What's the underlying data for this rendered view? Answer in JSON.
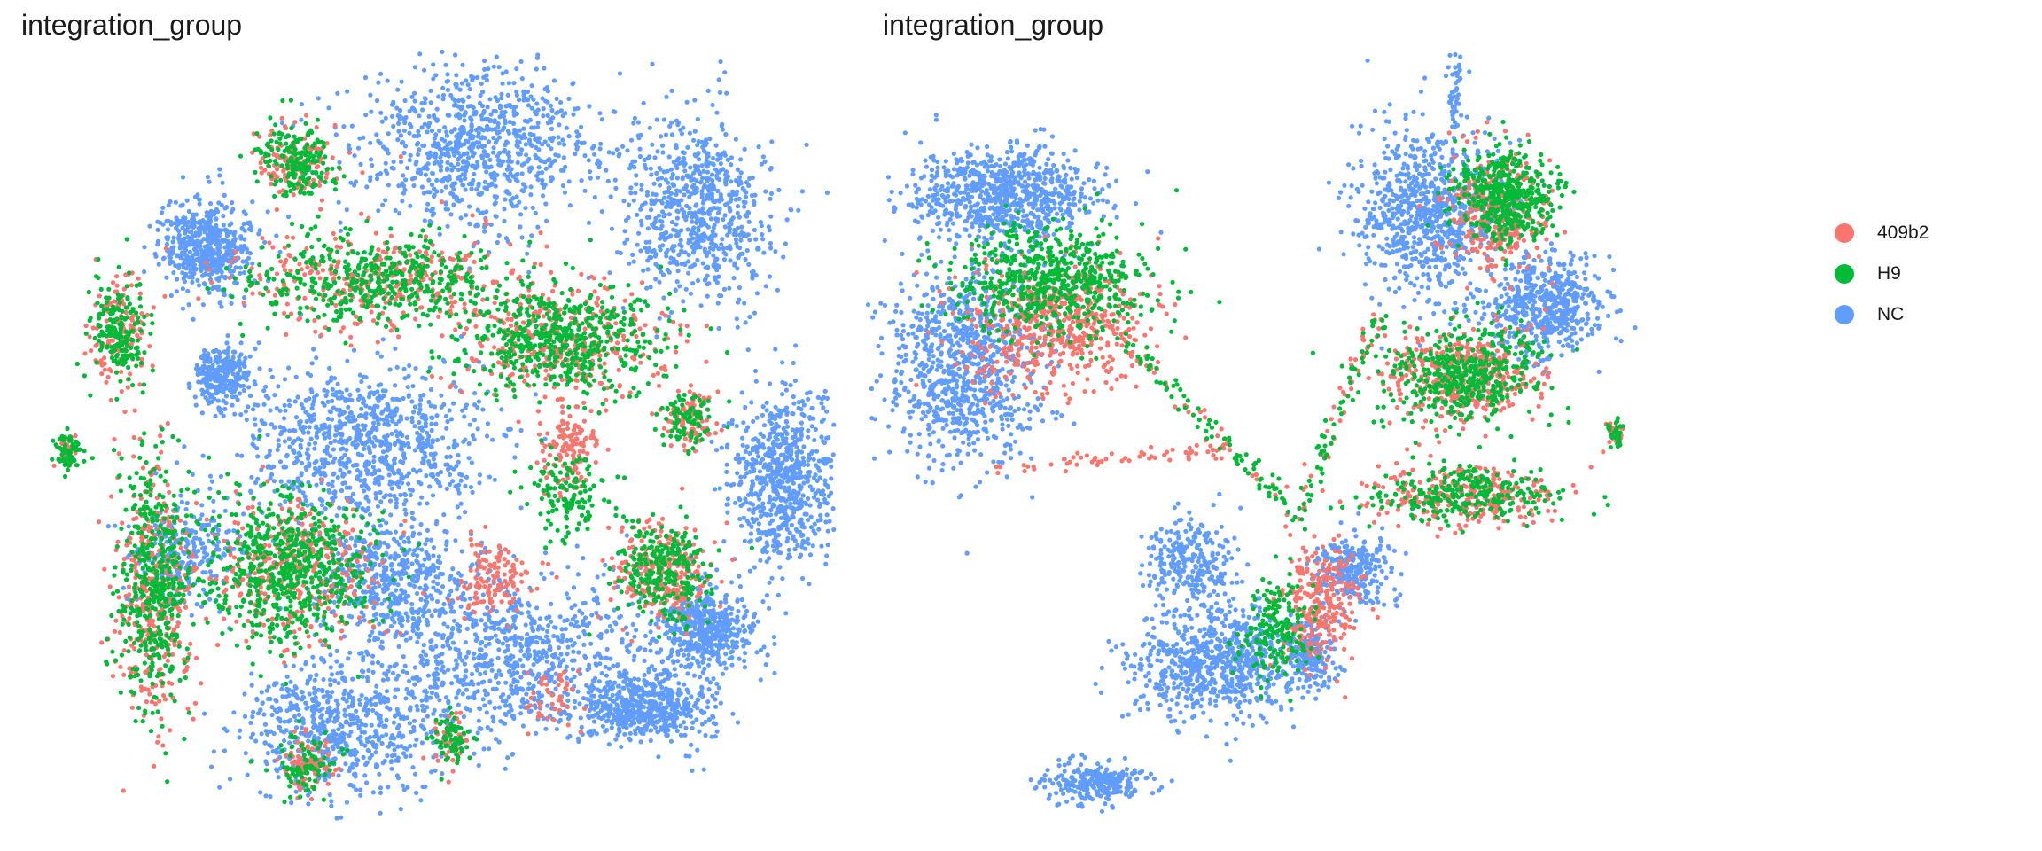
{
  "chart_data": [
    {
      "type": "scatter",
      "title": "integration_group",
      "axes": "hidden",
      "grid": false,
      "group_colors": {
        "409b2": "#F8766D",
        "H9": "#00BA38",
        "NC": "#619CFF"
      },
      "clusters": [
        {
          "group": "NC",
          "cx": 0.56,
          "cy": 0.17,
          "rx": 0.13,
          "ry": 0.09,
          "density": 1.0
        },
        {
          "group": "NC",
          "cx": 0.82,
          "cy": 0.25,
          "rx": 0.08,
          "ry": 0.1,
          "density": 0.8
        },
        {
          "group": "NC",
          "cx": 0.24,
          "cy": 0.29,
          "rx": 0.05,
          "ry": 0.05,
          "density": 0.6
        },
        {
          "group": "NC",
          "cx": 0.26,
          "cy": 0.44,
          "rx": 0.03,
          "ry": 0.03,
          "density": 0.3
        },
        {
          "group": "NC",
          "cx": 0.43,
          "cy": 0.52,
          "rx": 0.13,
          "ry": 0.08,
          "density": 1.0
        },
        {
          "group": "NC",
          "cx": 0.92,
          "cy": 0.56,
          "rx": 0.06,
          "ry": 0.09,
          "density": 0.8
        },
        {
          "group": "NC",
          "cx": 0.6,
          "cy": 0.77,
          "rx": 0.16,
          "ry": 0.09,
          "density": 1.0
        },
        {
          "group": "NC",
          "cx": 0.76,
          "cy": 0.83,
          "rx": 0.07,
          "ry": 0.04,
          "density": 0.6
        },
        {
          "group": "NC",
          "cx": 0.83,
          "cy": 0.74,
          "rx": 0.05,
          "ry": 0.04,
          "density": 0.5
        },
        {
          "group": "NC",
          "cx": 0.4,
          "cy": 0.86,
          "rx": 0.1,
          "ry": 0.07,
          "density": 0.7
        },
        {
          "group": "NC",
          "cx": 0.46,
          "cy": 0.68,
          "rx": 0.08,
          "ry": 0.06,
          "density": 0.5
        },
        {
          "group": "NC",
          "cx": 0.22,
          "cy": 0.65,
          "rx": 0.06,
          "ry": 0.06,
          "density": 0.3
        },
        {
          "group": "H9",
          "cx": 0.66,
          "cy": 0.4,
          "rx": 0.11,
          "ry": 0.06,
          "density": 0.6
        },
        {
          "group": "409b2",
          "cx": 0.66,
          "cy": 0.4,
          "rx": 0.11,
          "ry": 0.06,
          "density": 0.4
        },
        {
          "group": "H9",
          "cx": 0.44,
          "cy": 0.33,
          "rx": 0.15,
          "ry": 0.05,
          "density": 0.5
        },
        {
          "group": "409b2",
          "cx": 0.44,
          "cy": 0.33,
          "rx": 0.15,
          "ry": 0.05,
          "density": 0.4
        },
        {
          "group": "H9",
          "cx": 0.35,
          "cy": 0.19,
          "rx": 0.04,
          "ry": 0.04,
          "density": 0.2
        },
        {
          "group": "409b2",
          "cx": 0.35,
          "cy": 0.19,
          "rx": 0.04,
          "ry": 0.04,
          "density": 0.15
        },
        {
          "group": "H9",
          "cx": 0.34,
          "cy": 0.67,
          "rx": 0.09,
          "ry": 0.08,
          "density": 0.7
        },
        {
          "group": "409b2",
          "cx": 0.34,
          "cy": 0.67,
          "rx": 0.09,
          "ry": 0.08,
          "density": 0.4
        },
        {
          "group": "H9",
          "cx": 0.18,
          "cy": 0.68,
          "rx": 0.04,
          "ry": 0.14,
          "density": 0.5
        },
        {
          "group": "409b2",
          "cx": 0.18,
          "cy": 0.7,
          "rx": 0.04,
          "ry": 0.14,
          "density": 0.4
        },
        {
          "group": "H9",
          "cx": 0.14,
          "cy": 0.39,
          "rx": 0.03,
          "ry": 0.06,
          "density": 0.2
        },
        {
          "group": "409b2",
          "cx": 0.14,
          "cy": 0.39,
          "rx": 0.03,
          "ry": 0.06,
          "density": 0.15
        },
        {
          "group": "H9",
          "cx": 0.08,
          "cy": 0.53,
          "rx": 0.015,
          "ry": 0.02,
          "density": 0.08
        },
        {
          "group": "409b2",
          "cx": 0.08,
          "cy": 0.53,
          "rx": 0.012,
          "ry": 0.015,
          "density": 0.04
        },
        {
          "group": "H9",
          "cx": 0.78,
          "cy": 0.67,
          "rx": 0.05,
          "ry": 0.05,
          "density": 0.3
        },
        {
          "group": "409b2",
          "cx": 0.78,
          "cy": 0.67,
          "rx": 0.05,
          "ry": 0.05,
          "density": 0.3
        },
        {
          "group": "H9",
          "cx": 0.67,
          "cy": 0.58,
          "rx": 0.04,
          "ry": 0.05,
          "density": 0.15
        },
        {
          "group": "409b2",
          "cx": 0.67,
          "cy": 0.53,
          "rx": 0.03,
          "ry": 0.04,
          "density": 0.15
        },
        {
          "group": "409b2",
          "cx": 0.58,
          "cy": 0.68,
          "rx": 0.04,
          "ry": 0.04,
          "density": 0.15
        },
        {
          "group": "H9",
          "cx": 0.36,
          "cy": 0.9,
          "rx": 0.03,
          "ry": 0.03,
          "density": 0.1
        },
        {
          "group": "409b2",
          "cx": 0.36,
          "cy": 0.9,
          "rx": 0.03,
          "ry": 0.03,
          "density": 0.1
        },
        {
          "group": "H9",
          "cx": 0.53,
          "cy": 0.87,
          "rx": 0.02,
          "ry": 0.03,
          "density": 0.08
        },
        {
          "group": "409b2",
          "cx": 0.53,
          "cy": 0.87,
          "rx": 0.02,
          "ry": 0.03,
          "density": 0.05
        },
        {
          "group": "H9",
          "cx": 0.81,
          "cy": 0.49,
          "rx": 0.03,
          "ry": 0.03,
          "density": 0.1
        },
        {
          "group": "409b2",
          "cx": 0.81,
          "cy": 0.49,
          "rx": 0.03,
          "ry": 0.03,
          "density": 0.1
        },
        {
          "group": "409b2",
          "cx": 0.65,
          "cy": 0.82,
          "rx": 0.03,
          "ry": 0.03,
          "density": 0.05
        }
      ]
    },
    {
      "type": "scatter",
      "title": "integration_group",
      "axes": "hidden",
      "grid": false,
      "group_colors": {
        "409b2": "#F8766D",
        "H9": "#00BA38",
        "NC": "#619CFF"
      },
      "clusters": [
        {
          "group": "NC",
          "cx": 0.18,
          "cy": 0.23,
          "rx": 0.1,
          "ry": 0.05,
          "density": 0.9
        },
        {
          "group": "NC",
          "cx": 0.13,
          "cy": 0.43,
          "rx": 0.08,
          "ry": 0.11,
          "density": 1.0
        },
        {
          "group": "NC",
          "cx": 0.68,
          "cy": 0.25,
          "rx": 0.08,
          "ry": 0.09,
          "density": 0.9
        },
        {
          "group": "NC",
          "cx": 0.82,
          "cy": 0.36,
          "rx": 0.06,
          "ry": 0.05,
          "density": 0.6
        },
        {
          "group": "NC",
          "cx": 0.71,
          "cy": 0.1,
          "rx": 0.008,
          "ry": 0.05,
          "density": 0.05
        },
        {
          "group": "NC",
          "cx": 0.43,
          "cy": 0.78,
          "rx": 0.09,
          "ry": 0.06,
          "density": 0.8
        },
        {
          "group": "NC",
          "cx": 0.29,
          "cy": 0.92,
          "rx": 0.05,
          "ry": 0.02,
          "density": 0.3
        },
        {
          "group": "NC",
          "cx": 0.4,
          "cy": 0.66,
          "rx": 0.05,
          "ry": 0.05,
          "density": 0.3
        },
        {
          "group": "NC",
          "cx": 0.59,
          "cy": 0.67,
          "rx": 0.04,
          "ry": 0.04,
          "density": 0.3
        },
        {
          "group": "NC",
          "cx": 0.54,
          "cy": 0.77,
          "rx": 0.03,
          "ry": 0.04,
          "density": 0.2
        },
        {
          "group": "H9",
          "cx": 0.24,
          "cy": 0.33,
          "rx": 0.1,
          "ry": 0.06,
          "density": 0.7
        },
        {
          "group": "409b2",
          "cx": 0.24,
          "cy": 0.38,
          "rx": 0.1,
          "ry": 0.07,
          "density": 0.6
        },
        {
          "group": "H9",
          "cx": 0.77,
          "cy": 0.23,
          "rx": 0.05,
          "ry": 0.05,
          "density": 0.5
        },
        {
          "group": "409b2",
          "cx": 0.76,
          "cy": 0.25,
          "rx": 0.05,
          "ry": 0.06,
          "density": 0.4
        },
        {
          "group": "H9",
          "cx": 0.72,
          "cy": 0.44,
          "rx": 0.08,
          "ry": 0.05,
          "density": 0.5
        },
        {
          "group": "409b2",
          "cx": 0.72,
          "cy": 0.44,
          "rx": 0.08,
          "ry": 0.05,
          "density": 0.5
        },
        {
          "group": "H9",
          "cx": 0.72,
          "cy": 0.58,
          "rx": 0.1,
          "ry": 0.03,
          "density": 0.3
        },
        {
          "group": "409b2",
          "cx": 0.72,
          "cy": 0.58,
          "rx": 0.1,
          "ry": 0.03,
          "density": 0.3
        },
        {
          "group": "409b2",
          "cx": 0.55,
          "cy": 0.71,
          "rx": 0.04,
          "ry": 0.06,
          "density": 0.3
        },
        {
          "group": "H9",
          "cx": 0.5,
          "cy": 0.74,
          "rx": 0.04,
          "ry": 0.05,
          "density": 0.2
        },
        {
          "group": "H9",
          "cx": 0.9,
          "cy": 0.51,
          "rx": 0.01,
          "ry": 0.015,
          "density": 0.03
        },
        {
          "group": "409b2",
          "cx": 0.9,
          "cy": 0.51,
          "rx": 0.01,
          "ry": 0.015,
          "density": 0.03
        }
      ],
      "trails": [
        {
          "group": "409b2",
          "from": [
            0.17,
            0.55
          ],
          "to": [
            0.45,
            0.53
          ],
          "count": 60
        },
        {
          "group": "H9",
          "from": [
            0.3,
            0.38
          ],
          "to": [
            0.52,
            0.6
          ],
          "count": 80
        },
        {
          "group": "409b2",
          "from": [
            0.3,
            0.38
          ],
          "to": [
            0.52,
            0.6
          ],
          "count": 40
        },
        {
          "group": "H9",
          "from": [
            0.62,
            0.37
          ],
          "to": [
            0.52,
            0.62
          ],
          "count": 60
        },
        {
          "group": "409b2",
          "from": [
            0.62,
            0.37
          ],
          "to": [
            0.52,
            0.62
          ],
          "count": 40
        }
      ]
    }
  ],
  "legend": {
    "placement": "right",
    "items": [
      {
        "label": "409b2",
        "color": "#F8766D"
      },
      {
        "label": "H9",
        "color": "#00BA38"
      },
      {
        "label": "NC",
        "color": "#619CFF"
      }
    ]
  }
}
